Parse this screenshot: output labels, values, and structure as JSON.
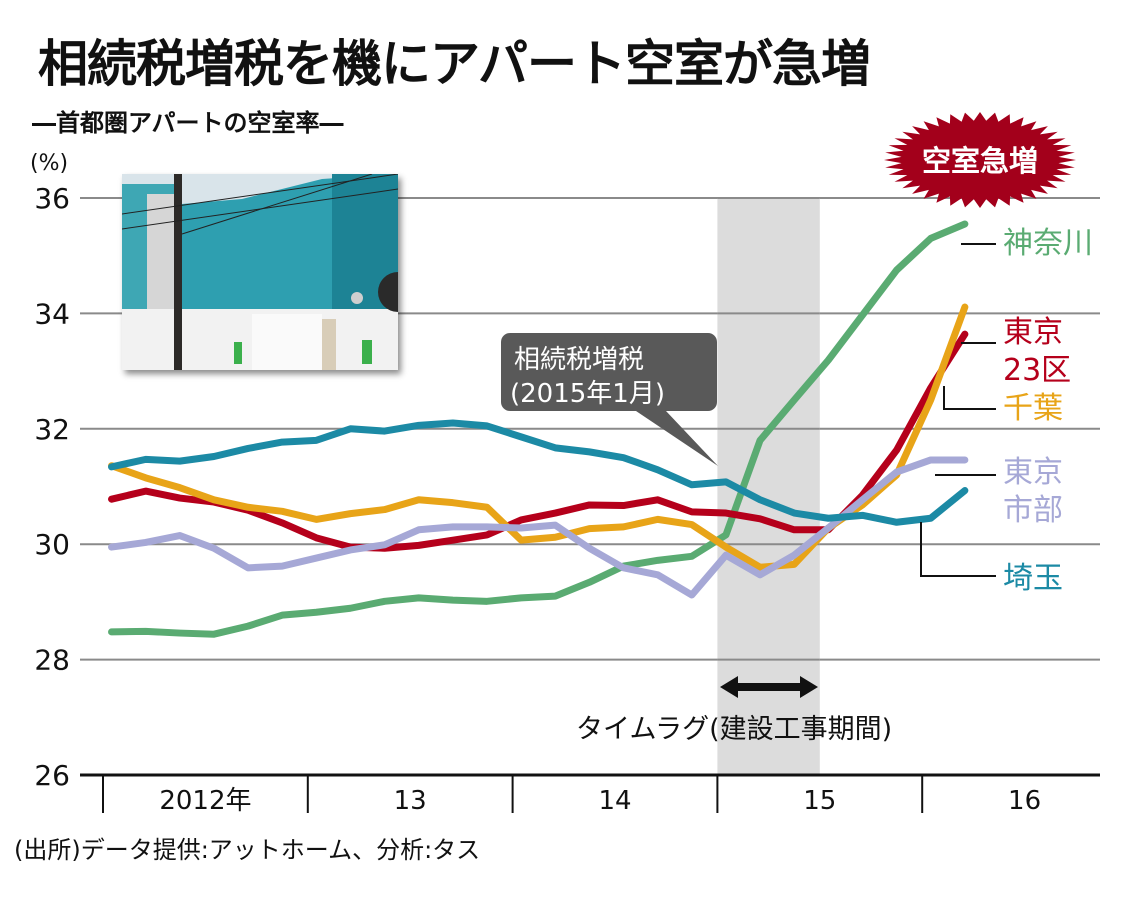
{
  "title": "相続税増税を機にアパート空室が急増",
  "subtitle": "―首都圏アパートの空室率―",
  "source": "(出所)データ提供:アットホーム、分析:タス",
  "badge": {
    "label": "空室急増",
    "color": "#a3001b"
  },
  "callout": {
    "line1": "相続税増税",
    "line2": "(2015年1月)"
  },
  "timelag_label": "タイムラグ(建設工事期間)",
  "photo": {
    "description": "construction-site-photo"
  },
  "chart_data": {
    "type": "line",
    "title": "相続税増税を機にアパート空室が急増",
    "subtitle": "首都圏アパートの空室率",
    "ylabel": "(%)",
    "xlabel": "",
    "ylim": [
      26,
      36
    ],
    "yticks": [
      26,
      28,
      30,
      32,
      34,
      36
    ],
    "grid": true,
    "x_range_months": [
      0,
      60
    ],
    "year_labels": [
      "2012年",
      "13",
      "14",
      "15",
      "16"
    ],
    "x_months": [
      0.5,
      2.5,
      4.5,
      6.5,
      8.5,
      10.5,
      12.5,
      14.5,
      16.5,
      18.5,
      20.5,
      22.5,
      24.5,
      26.5,
      28.5,
      30.5,
      32.5,
      34.5,
      36.5,
      38.5,
      40.5,
      42.5,
      44.5,
      46.5,
      48.5,
      50.5
    ],
    "shaded_period": {
      "start_month": 36,
      "end_month": 42,
      "label": "タイムラグ(建設工事期間)"
    },
    "annotation": {
      "text": "相続税増税(2015年1月)",
      "month": 36
    },
    "series": [
      {
        "name": "神奈川",
        "color": "#5aab72",
        "values": [
          28.48,
          28.49,
          28.46,
          28.44,
          28.58,
          28.77,
          28.82,
          28.89,
          29.01,
          29.07,
          29.03,
          29.01,
          29.07,
          29.1,
          29.34,
          29.62,
          29.72,
          29.79,
          30.16,
          31.8,
          32.5,
          33.19,
          33.97,
          34.75,
          35.3,
          35.55
        ]
      },
      {
        "name": "東京23区",
        "label_lines": [
          "東京",
          "23区"
        ],
        "color": "#b5001b",
        "values": [
          30.78,
          30.92,
          30.8,
          30.73,
          30.59,
          30.37,
          30.11,
          29.95,
          29.93,
          29.98,
          30.07,
          30.16,
          30.42,
          30.54,
          30.68,
          30.67,
          30.77,
          30.56,
          30.54,
          30.44,
          30.25,
          30.25,
          30.85,
          31.63,
          32.71,
          33.64
        ]
      },
      {
        "name": "千葉",
        "color": "#e8a418",
        "values": [
          31.36,
          31.15,
          30.98,
          30.77,
          30.64,
          30.57,
          30.43,
          30.53,
          30.6,
          30.77,
          30.72,
          30.64,
          30.07,
          30.12,
          30.27,
          30.3,
          30.43,
          30.34,
          29.95,
          29.6,
          29.65,
          30.28,
          30.68,
          31.2,
          32.5,
          34.11
        ]
      },
      {
        "name": "東京市部",
        "label_lines": [
          "東京",
          "市部"
        ],
        "color": "#a6a8d6",
        "values": [
          29.95,
          30.03,
          30.15,
          29.93,
          29.59,
          29.62,
          29.76,
          29.9,
          29.99,
          30.25,
          30.3,
          30.3,
          30.28,
          30.33,
          29.93,
          29.59,
          29.47,
          29.12,
          29.81,
          29.47,
          29.81,
          30.28,
          30.77,
          31.25,
          31.46,
          31.46
        ]
      },
      {
        "name": "埼玉",
        "color": "#1c8aa5",
        "values": [
          31.34,
          31.47,
          31.44,
          31.52,
          31.66,
          31.77,
          31.8,
          32.0,
          31.96,
          32.06,
          32.1,
          32.05,
          31.86,
          31.67,
          31.6,
          31.5,
          31.29,
          31.03,
          31.08,
          30.77,
          30.54,
          30.45,
          30.5,
          30.38,
          30.45,
          30.93
        ]
      }
    ]
  }
}
